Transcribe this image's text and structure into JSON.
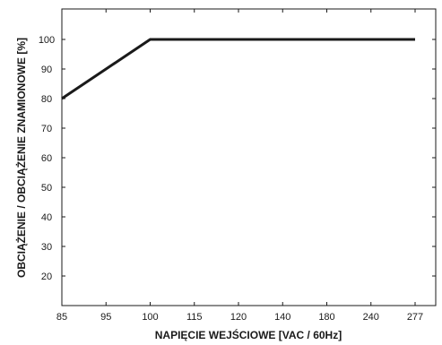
{
  "chart_data": {
    "type": "line",
    "title": "",
    "xlabel": "NAPIĘCIE WEJŚCIOWE [VAC / 60Hz]",
    "ylabel": "OBCIĄŻENIE / OBCIĄŻENIE ZNAMIONOWE [%]",
    "x_scale": "categorical",
    "categories": [
      "85",
      "95",
      "100",
      "115",
      "120",
      "140",
      "180",
      "240",
      "277"
    ],
    "y_ticks": [
      20,
      30,
      40,
      50,
      60,
      70,
      80,
      90,
      100
    ],
    "ylim": [
      10,
      110
    ],
    "grid": false,
    "line_color": "#1a1a1a",
    "series": [
      {
        "values": [
          80,
          90,
          100,
          100,
          100,
          100,
          100,
          100,
          100
        ]
      }
    ]
  }
}
